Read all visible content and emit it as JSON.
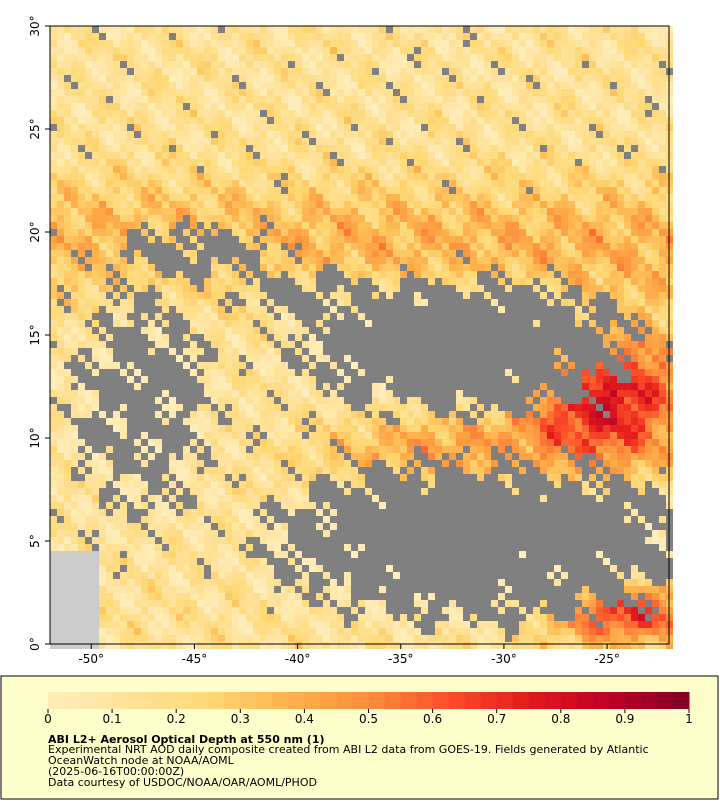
{
  "map": {
    "xlim": [
      -52,
      -22
    ],
    "ylim": [
      0,
      30
    ],
    "xticks": [
      {
        "value": -50,
        "label": "-50°"
      },
      {
        "value": -45,
        "label": "-45°"
      },
      {
        "value": -40,
        "label": "-40°"
      },
      {
        "value": -35,
        "label": "-35°"
      },
      {
        "value": -30,
        "label": "-30°"
      },
      {
        "value": -25,
        "label": "-25°"
      }
    ],
    "yticks": [
      {
        "value": 0,
        "label": "0°"
      },
      {
        "value": 5,
        "label": "5°"
      },
      {
        "value": 10,
        "label": "10°"
      },
      {
        "value": 15,
        "label": "15°"
      },
      {
        "value": 20,
        "label": "20°"
      },
      {
        "value": 25,
        "label": "25°"
      },
      {
        "value": 30,
        "label": "30°"
      }
    ],
    "no_data_color": "#808080",
    "land_color": "#cccccc"
  },
  "colorbar": {
    "lim": [
      0,
      1
    ],
    "ticks": [
      0,
      0.1,
      0.2,
      0.3,
      0.4,
      0.5,
      0.6,
      0.7,
      0.8,
      0.9,
      1
    ],
    "colors": [
      "#ffeebb",
      "#ffe29a",
      "#fed976",
      "#feb24c",
      "#fd8d3c",
      "#fc4e2a",
      "#e31a1c",
      "#bd0026",
      "#800026"
    ]
  },
  "caption": {
    "title": "ABI L2+ Aerosol Optical Depth at 550 nm (1)",
    "lines": [
      "Experimental NRT AOD daily composite created from ABI L2 data from GOES-19. Fields generated by Atlantic",
      "OceanWatch node at NOAA/AOML",
      "(2025-06-16T00:00:00Z)",
      "Data courtesy of USDOC/NOAA/OAR/AOML/PHOD"
    ]
  }
}
